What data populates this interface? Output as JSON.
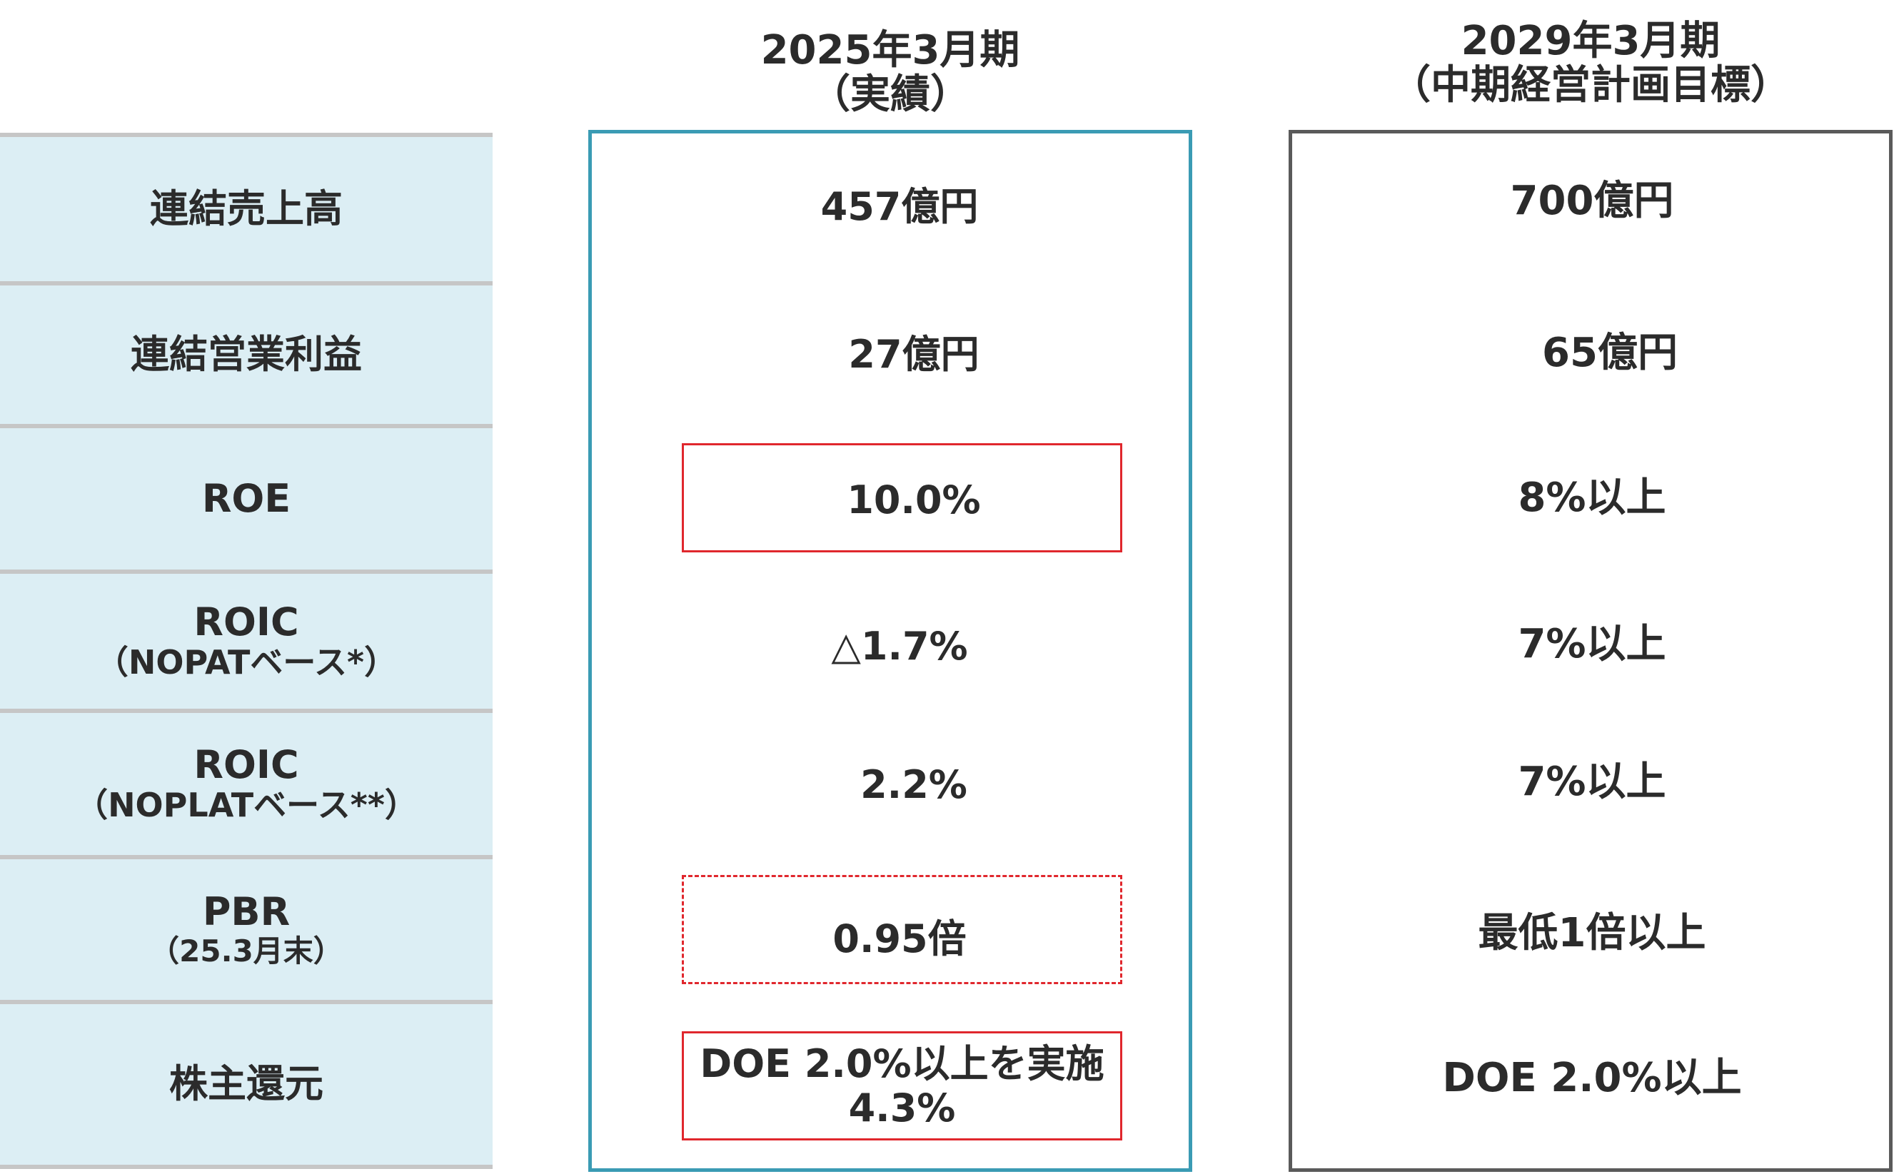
{
  "columns": {
    "actual": {
      "line1": "2025年3月期",
      "line2": "（実績）"
    },
    "target": {
      "line1": "2029年3月期",
      "line2": "（中期経営計画目標）"
    }
  },
  "rows": [
    {
      "label": "連結売上高",
      "actual": "457億円",
      "target": "700億円"
    },
    {
      "label": "連結営業利益",
      "actual": "27億円",
      "target": "65億円"
    },
    {
      "label": "ROE",
      "actual": "10.0%",
      "target": "8%以上"
    },
    {
      "label": "ROIC",
      "sublabel": "（NOPATベース*）",
      "actual": "△1.7%",
      "target": "7%以上"
    },
    {
      "label": "ROIC",
      "sublabel": "（NOPLATベース**）",
      "actual": "2.2%",
      "target": "7%以上"
    },
    {
      "label": "PBR",
      "sublabel": "（25.3月末）",
      "actual": "0.95倍",
      "target": "最低1倍以上"
    },
    {
      "label": "株主還元",
      "actual_line1": "DOE 2.0%以上を実施",
      "actual_line2": "4.3%",
      "target": "DOE 2.0%以上"
    }
  ],
  "colors": {
    "label_bg": "#dceef4",
    "divider": "#c6c6c6",
    "actual_frame": "#3a9bb4",
    "target_frame": "#5a5a5a",
    "highlight": "#e0272d",
    "text": "#2b2b2b"
  }
}
